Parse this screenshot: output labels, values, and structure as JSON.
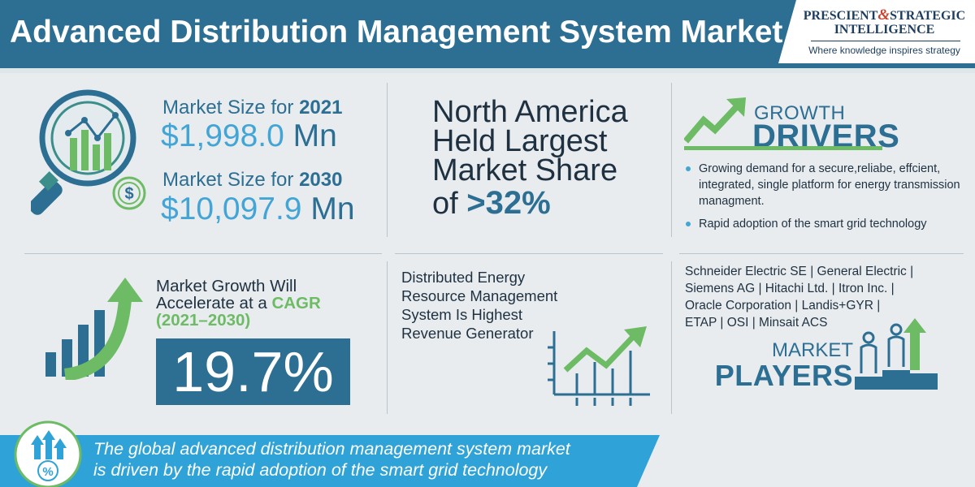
{
  "header": {
    "title": "Advanced Distribution Management System Market",
    "logo": {
      "word1": "PRESCIENT",
      "amp": "&",
      "word2": "STRATEGIC",
      "line2": "INTELLIGENCE",
      "tagline": "Where knowledge inspires strategy"
    }
  },
  "market_size": {
    "label_prefix": "Market Size for",
    "items": [
      {
        "year": "2021",
        "value": "$1,998.0",
        "unit": "Mn"
      },
      {
        "year": "2030",
        "value": "$10,097.9",
        "unit": "Mn"
      }
    ]
  },
  "north_america": {
    "lines": [
      "North America",
      "Held Largest",
      "Market Share"
    ],
    "of": "of",
    "pct": ">32%"
  },
  "growth_drivers": {
    "title_small": "GROWTH",
    "title_big": "DRIVERS",
    "bullets": [
      "Growing demand for a secure,reliabe, effcient, integrated, single platform for energy transmission managment.",
      "Rapid adoption of the smart grid technology"
    ]
  },
  "cagr": {
    "line1": "Market Growth Will",
    "line2_prefix": "Accelerate at a",
    "line2_cagr": "CAGR",
    "years": "(2021–2030)",
    "value": "19.7%"
  },
  "segment": {
    "lines": [
      "Distributed Energy",
      "Resource Management",
      "System Is Highest",
      "Revenue Generator"
    ]
  },
  "players": {
    "lines": [
      "Schneider Electric SE | General Electric |",
      "Siemens AG | Hitachi Ltd. | Itron Inc. |",
      "Oracle Corporation | Landis+GYR |",
      "ETAP | OSI | Minsait ACS"
    ],
    "title_small": "MARKET",
    "title_big": "PLAYERS"
  },
  "footer": {
    "lines": [
      "The global advanced distribution management system market",
      "is driven by the rapid adoption of the smart grid technology"
    ]
  },
  "colors": {
    "brand_blue": "#2d6e93",
    "light_blue": "#42a5d6",
    "green": "#6dbb64",
    "teal": "#3c8e8a",
    "banner_blue": "#2fa3d8",
    "background": "#e8ecef"
  },
  "icons": [
    "magnifier-chart-icon",
    "dollar-coin-icon",
    "growth-arrow-icon",
    "growth-bars-arrow-icon",
    "line-chart-icon",
    "players-podium-icon",
    "percent-growth-icon"
  ]
}
